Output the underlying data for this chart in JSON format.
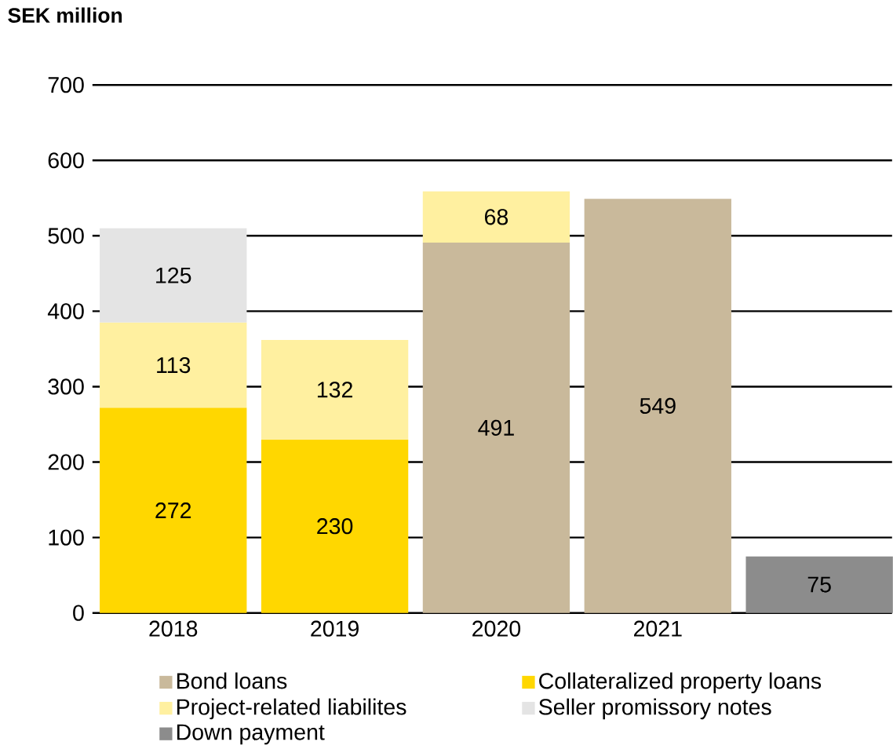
{
  "chart_data": {
    "type": "bar",
    "stacked": true,
    "ylabel": "SEK million",
    "categories": [
      "2018",
      "2019",
      "2020",
      "2021",
      null
    ],
    "series": [
      {
        "name": "Bond loans",
        "color": "#c9b99b",
        "values": [
          null,
          null,
          491,
          549,
          null
        ]
      },
      {
        "name": "Collateralized property loans",
        "color": "#ffd700",
        "values": [
          272,
          230,
          null,
          null,
          null
        ]
      },
      {
        "name": "Project-related liabilites",
        "color": "#fff0a0",
        "values": [
          113,
          132,
          68,
          null,
          null
        ]
      },
      {
        "name": "Seller promissory notes",
        "color": "#e4e4e4",
        "values": [
          125,
          null,
          null,
          null,
          null
        ]
      },
      {
        "name": "Down payment",
        "color": "#8c8c8c",
        "values": [
          null,
          null,
          null,
          null,
          75
        ]
      }
    ],
    "ylim": [
      0,
      700
    ],
    "yticks": [
      0,
      100,
      200,
      300,
      400,
      500,
      600,
      700
    ],
    "grid": "y",
    "legend": "bottom",
    "data_labels": true
  }
}
